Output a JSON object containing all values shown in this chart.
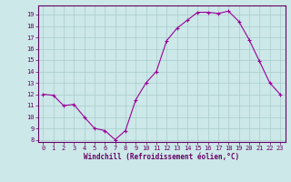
{
  "x": [
    0,
    1,
    2,
    3,
    4,
    5,
    6,
    7,
    8,
    9,
    10,
    11,
    12,
    13,
    14,
    15,
    16,
    17,
    18,
    19,
    20,
    21,
    22,
    23
  ],
  "y": [
    12,
    11.9,
    11,
    11.1,
    10,
    9,
    8.8,
    8,
    8.8,
    11.5,
    13,
    14,
    16.7,
    17.8,
    18.5,
    19.2,
    19.2,
    19.1,
    19.3,
    18.4,
    16.8,
    14.9,
    13,
    12
  ],
  "line_color": "#990099",
  "marker": "+",
  "marker_size": 3.5,
  "marker_lw": 0.8,
  "line_width": 0.8,
  "bg_color": "#cce8e8",
  "grid_color": "#aacccc",
  "xlabel": "Windchill (Refroidissement éolien,°C)",
  "xlabel_color": "#660066",
  "tick_color": "#660066",
  "spine_color": "#660066",
  "ylim": [
    7.8,
    19.8
  ],
  "xlim": [
    -0.5,
    23.5
  ],
  "yticks": [
    8,
    9,
    10,
    11,
    12,
    13,
    14,
    15,
    16,
    17,
    18,
    19
  ],
  "xticks": [
    0,
    1,
    2,
    3,
    4,
    5,
    6,
    7,
    8,
    9,
    10,
    11,
    12,
    13,
    14,
    15,
    16,
    17,
    18,
    19,
    20,
    21,
    22,
    23
  ],
  "tick_fontsize": 5.0,
  "xlabel_fontsize": 5.5
}
